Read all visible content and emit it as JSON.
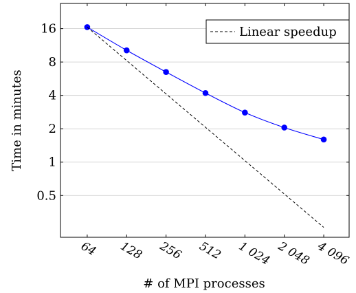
{
  "chart_data": {
    "type": "line",
    "xlabel": "# of MPI processes",
    "ylabel": "Time in minutes",
    "x_scale": "log2",
    "y_scale": "log2",
    "x_ticks": [
      64,
      128,
      256,
      512,
      1024,
      2048,
      4096
    ],
    "x_tick_labels": [
      "64",
      "128",
      "256",
      "512",
      "1 024",
      "2 048",
      "4 096"
    ],
    "y_ticks": [
      0.5,
      1,
      2,
      4,
      8,
      16
    ],
    "y_tick_labels": [
      "0.5",
      "1",
      "2",
      "4",
      "8",
      "16"
    ],
    "xlim": [
      40,
      6400
    ],
    "ylim": [
      0.21,
      27
    ],
    "grid": "horizontal",
    "legend_position": "top-right",
    "series": [
      {
        "name": "",
        "color": "#0000ff",
        "marker": "circle",
        "line_style": "solid",
        "x": [
          64,
          128,
          256,
          512,
          1024,
          2048,
          4096
        ],
        "values": [
          16.5,
          10.2,
          6.5,
          4.2,
          2.8,
          2.05,
          1.6
        ]
      },
      {
        "name": "Linear speedup",
        "color": "#000000",
        "marker": "none",
        "line_style": "dashed",
        "x": [
          64,
          4096
        ],
        "values": [
          16.5,
          0.258
        ]
      }
    ]
  }
}
